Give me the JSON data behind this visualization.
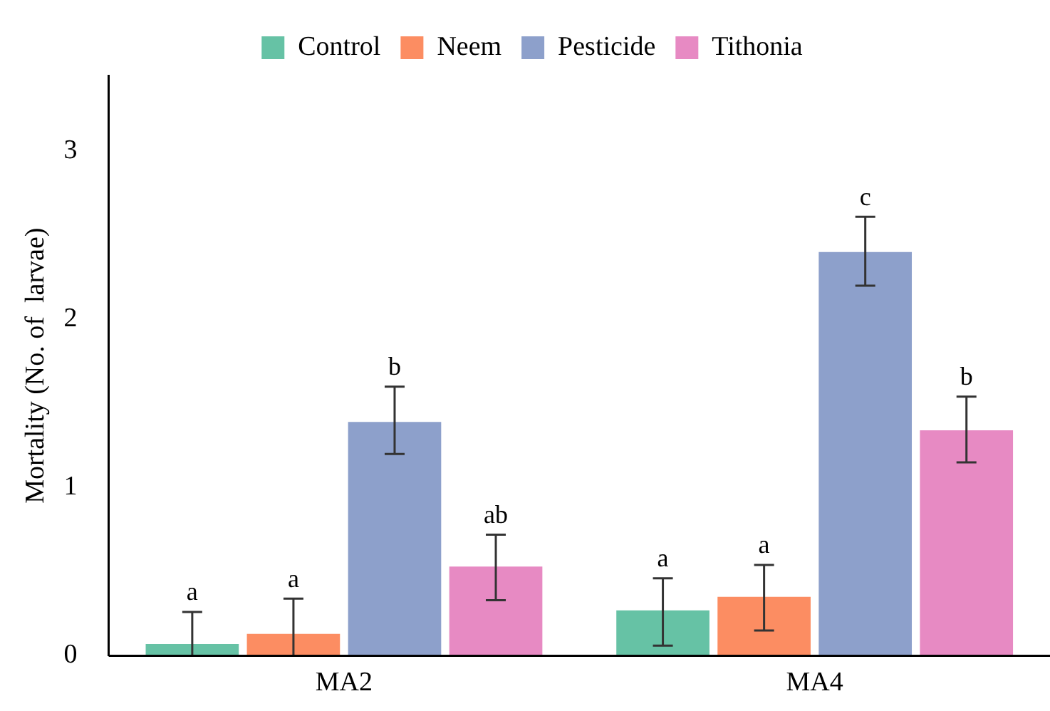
{
  "chart_data": {
    "type": "bar",
    "ylabel": "Mortality (No. of  larvae)",
    "categories": [
      "MA2",
      "MA4"
    ],
    "series": [
      {
        "name": "Control",
        "color": "#66c2a5",
        "values": [
          0.07,
          0.27
        ],
        "errors": [
          [
            0,
            0.26
          ],
          [
            0.06,
            0.46
          ]
        ],
        "value_labels": [
          "a",
          "a"
        ]
      },
      {
        "name": "Neem",
        "color": "#fc8d62",
        "values": [
          0.13,
          0.35
        ],
        "errors": [
          [
            0,
            0.34
          ],
          [
            0.15,
            0.54
          ]
        ],
        "value_labels": [
          "a",
          "a"
        ]
      },
      {
        "name": "Pesticide",
        "color": "#8da0cb",
        "values": [
          1.39,
          2.4
        ],
        "errors": [
          [
            1.2,
            1.6
          ],
          [
            2.2,
            2.61
          ]
        ],
        "value_labels": [
          "b",
          "c"
        ]
      },
      {
        "name": "Tithonia",
        "color": "#e78ac3",
        "values": [
          0.53,
          1.34
        ],
        "errors": [
          [
            0.33,
            0.72
          ],
          [
            1.15,
            1.54
          ]
        ],
        "value_labels": [
          "ab",
          "b"
        ]
      }
    ],
    "ylim": [
      0,
      3.45
    ],
    "yticks": [
      0,
      1,
      2,
      3
    ],
    "grid": false,
    "legend": "top"
  }
}
